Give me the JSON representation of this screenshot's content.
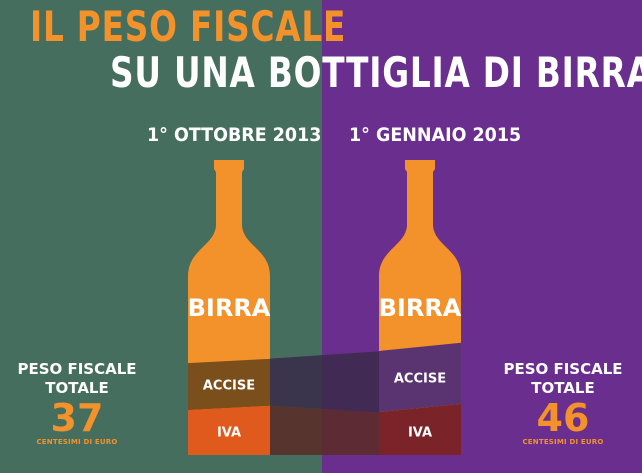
{
  "colors": {
    "bg_left": "#456e5f",
    "bg_right": "#6a2e8e",
    "orange": "#f3922a",
    "accise_left": "#7a4f1c",
    "accise_right": "#5a3470",
    "iva_left": "#e15a1d",
    "iva_right": "#7a2429",
    "white": "#ffffff"
  },
  "title": {
    "line1": "IL PESO FISCALE",
    "line2": "SU UNA BOTTIGLIA DI BIRRA*"
  },
  "chart_data": {
    "type": "bar",
    "categories": [
      "1° OTTOBRE 2013",
      "1° GENNAIO 2015"
    ],
    "bottle_label": "BIRRA",
    "series": [
      {
        "name": "IVA",
        "values": [
          1.0,
          1.0
        ]
      },
      {
        "name": "ACCISE",
        "values": [
          1.0,
          1.3
        ]
      }
    ],
    "totals": [
      37,
      46
    ],
    "total_label": "PESO FISCALE TOTALE",
    "unit": "CENTESIMI DI EURO"
  },
  "left": {
    "label_line1": "PESO FISCALE",
    "label_line2": "TOTALE",
    "value": "37",
    "unit": "CENTESIMI DI EURO"
  },
  "right": {
    "label_line1": "PESO FISCALE",
    "label_line2": "TOTALE",
    "value": "46",
    "unit": "CENTESIMI DI EURO"
  }
}
